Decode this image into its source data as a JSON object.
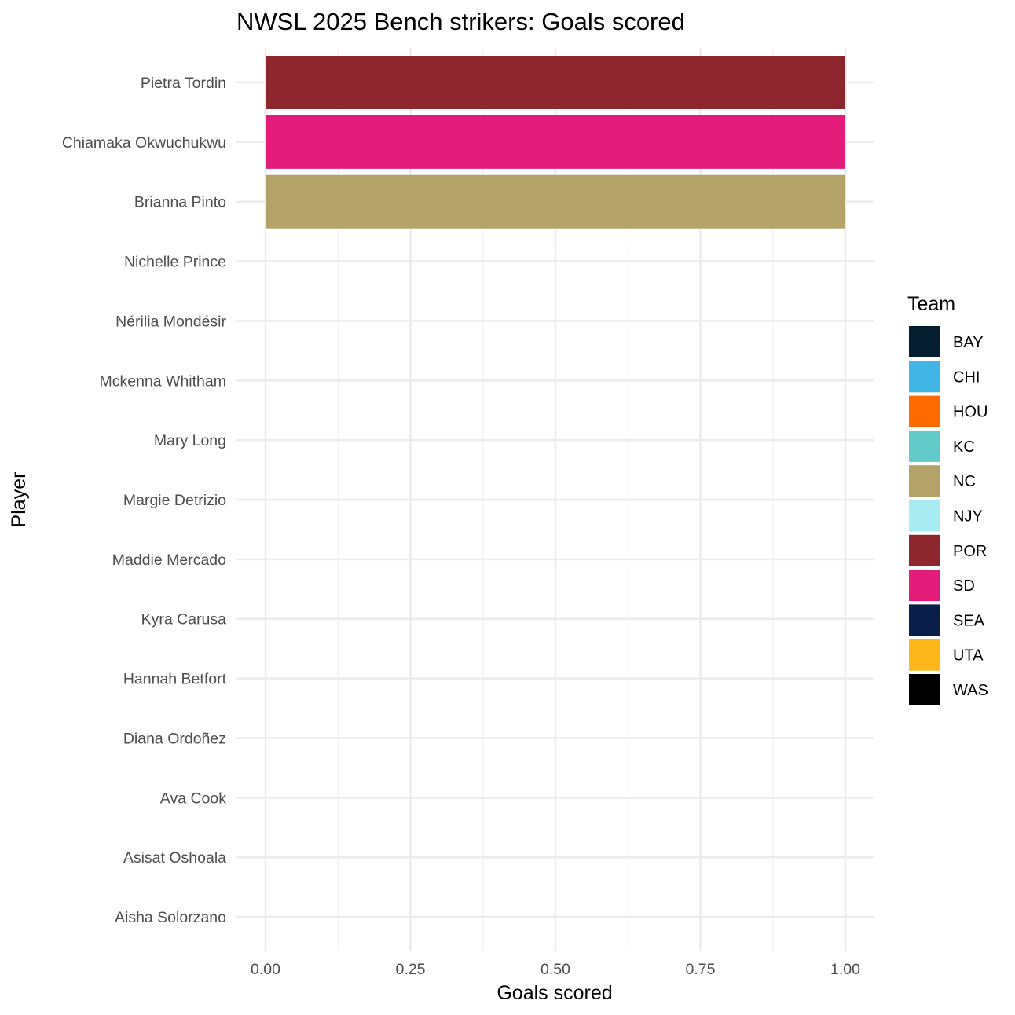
{
  "chart_data": {
    "type": "bar",
    "orientation": "horizontal",
    "title": "NWSL 2025 Bench strikers: Goals scored",
    "xlabel": "Goals scored",
    "ylabel": "Player",
    "xlim": [
      0,
      1
    ],
    "x_ticks": [
      "0.00",
      "0.25",
      "0.50",
      "0.75",
      "1.00"
    ],
    "x_tick_values": [
      0,
      0.25,
      0.5,
      0.75,
      1
    ],
    "grid": true,
    "legend_position": "right",
    "legend_title": "Team",
    "categories": [
      "Pietra Tordin",
      "Chiamaka Okwuchukwu",
      "Brianna Pinto",
      "Nichelle Prince",
      "Nérilia Mondésir",
      "Mckenna Whitham",
      "Mary Long",
      "Margie Detrizio",
      "Maddie Mercado",
      "Kyra Carusa",
      "Hannah Betfort",
      "Diana Ordoñez",
      "Ava Cook",
      "Asisat Oshoala",
      "Aisha Solorzano"
    ],
    "values": [
      1,
      1,
      1,
      0,
      0,
      0,
      0,
      0,
      0,
      0,
      0,
      0,
      0,
      0,
      0
    ],
    "bar_teams": [
      "POR",
      "SD",
      "NC"
    ],
    "legend": [
      {
        "team": "BAY",
        "color": "#041E2F"
      },
      {
        "team": "CHI",
        "color": "#41B6E6"
      },
      {
        "team": "HOU",
        "color": "#FF6B00"
      },
      {
        "team": "KC",
        "color": "#62CBC9"
      },
      {
        "team": "NC",
        "color": "#B3A369"
      },
      {
        "team": "NJY",
        "color": "#A9EDF3"
      },
      {
        "team": "POR",
        "color": "#8E262E"
      },
      {
        "team": "SD",
        "color": "#E31C79"
      },
      {
        "team": "SEA",
        "color": "#0A1E4B"
      },
      {
        "team": "UTA",
        "color": "#FFB81C"
      },
      {
        "team": "WAS",
        "color": "#000000"
      }
    ]
  }
}
